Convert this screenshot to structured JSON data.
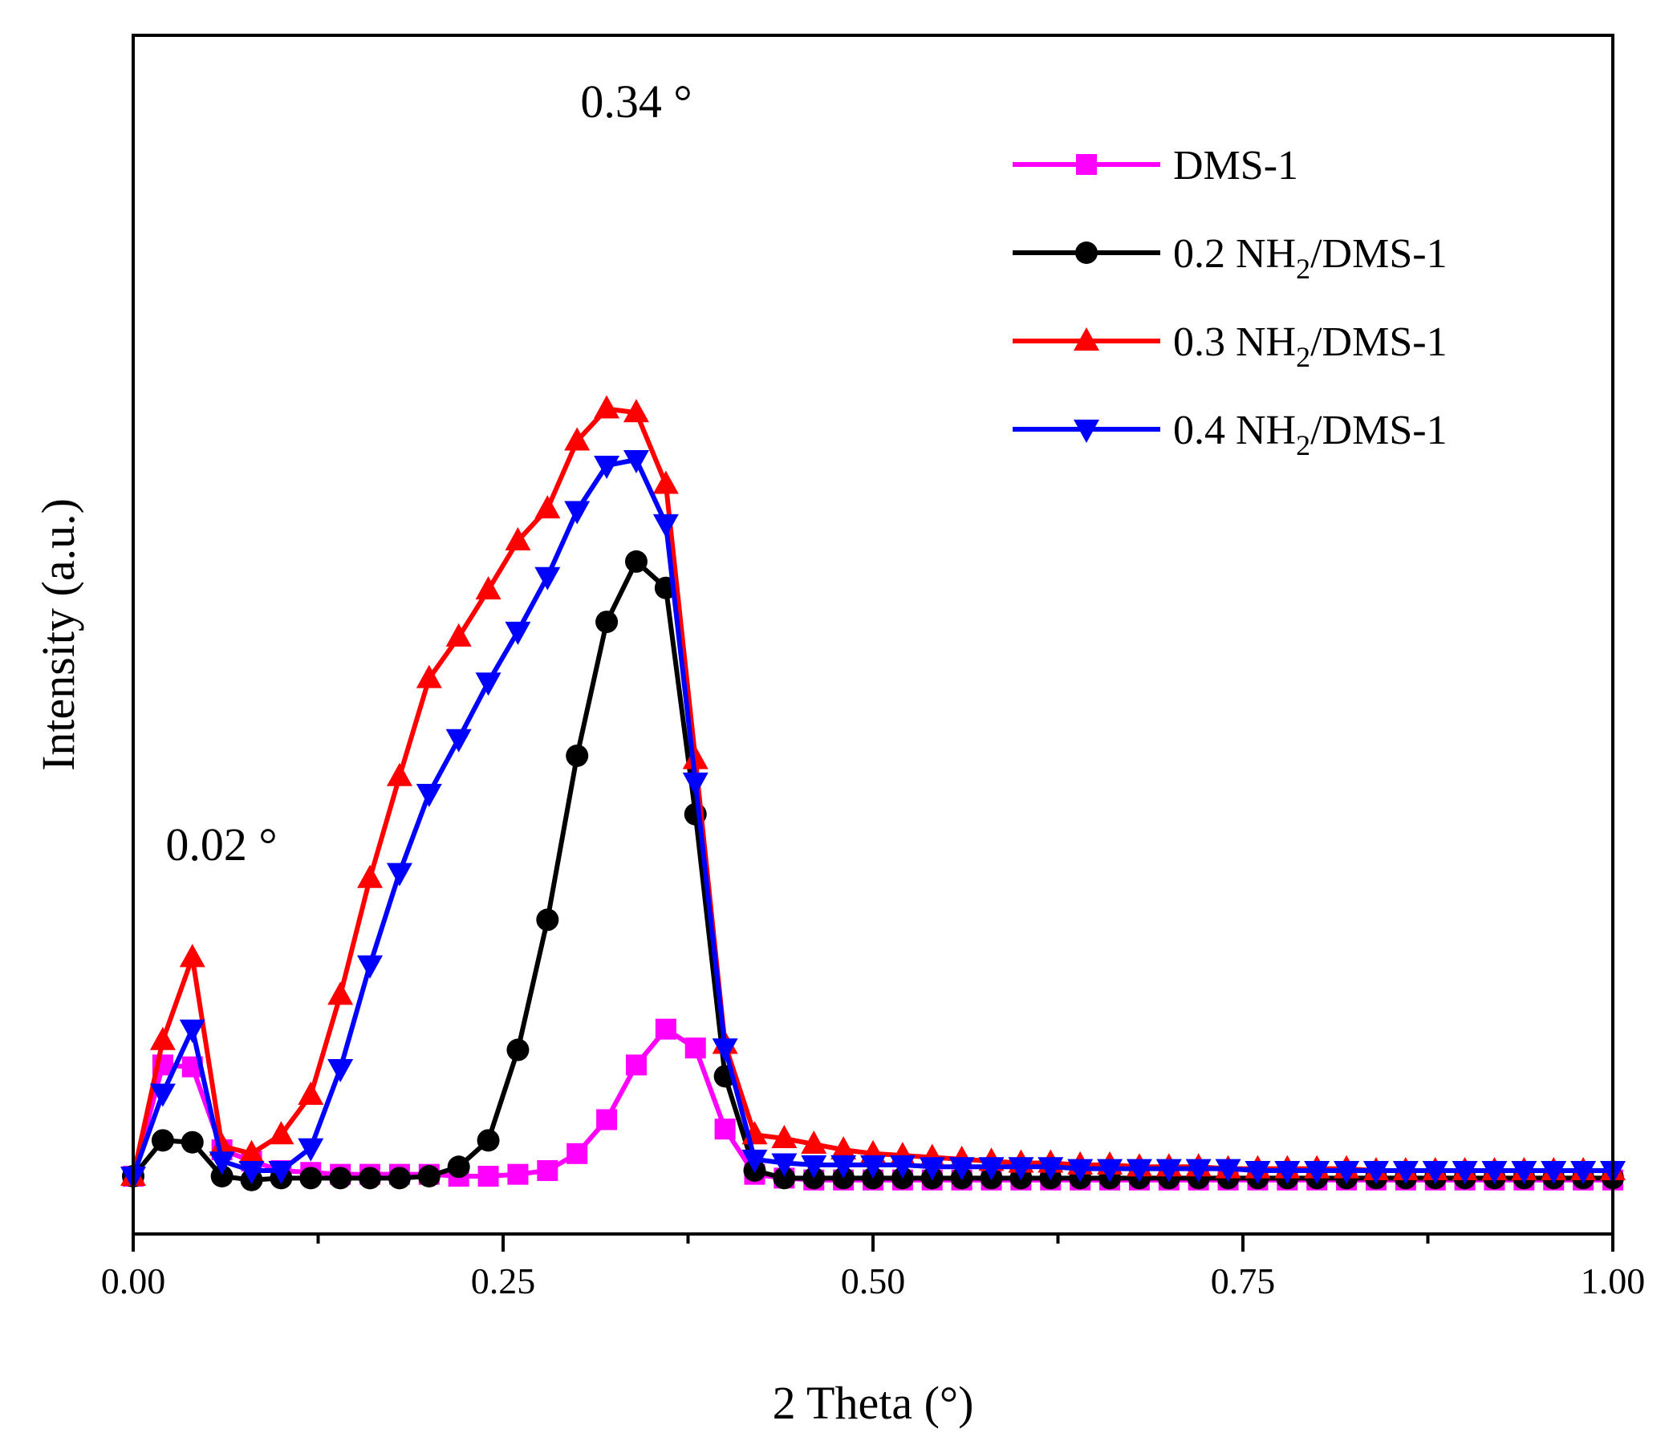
{
  "chart_data": {
    "type": "line",
    "title": "",
    "xlabel": "2 Theta (°)",
    "ylabel": "Intensity (a.u.)",
    "xlim": [
      0,
      1.0
    ],
    "ylim": [
      -2,
      48
    ],
    "xticks": [
      0.0,
      0.25,
      0.5,
      0.75,
      1.0
    ],
    "xtick_labels": [
      "0.00",
      "0.25",
      "0.50",
      "0.75",
      "1.00"
    ],
    "y_tick_labels_shown": false,
    "legend_position": "top-right",
    "annotations": [
      {
        "text": "0.34 °",
        "x": 0.34,
        "y": 45.5
      },
      {
        "text": "0.02 °",
        "x": 0.04,
        "y": 14.0
      }
    ],
    "x": [
      0.0,
      0.02,
      0.04,
      0.06,
      0.08,
      0.1,
      0.12,
      0.14,
      0.16,
      0.18,
      0.2,
      0.22,
      0.24,
      0.26,
      0.28,
      0.3,
      0.32,
      0.34,
      0.36,
      0.38,
      0.4,
      0.42,
      0.44,
      0.46,
      0.48,
      0.5,
      0.52,
      0.54,
      0.56,
      0.58,
      0.6,
      0.62,
      0.64,
      0.66,
      0.68,
      0.7,
      0.72,
      0.74,
      0.76,
      0.78,
      0.8,
      0.82,
      0.84,
      0.86,
      0.88,
      0.9,
      0.92,
      0.94,
      0.96,
      0.98,
      1.0
    ],
    "series": [
      {
        "name": "DMS-1",
        "label_parts": [
          "DMS-1",
          "",
          ""
        ],
        "color": "#ff00ff",
        "marker": "square",
        "values": [
          0.0,
          5.9,
          5.8,
          1.4,
          0.8,
          0.3,
          0.2,
          0.1,
          0.1,
          0.1,
          0.1,
          0.0,
          0.0,
          0.1,
          0.3,
          1.2,
          3.0,
          5.9,
          7.8,
          6.8,
          2.5,
          0.1,
          -0.1,
          -0.2,
          -0.2,
          -0.2,
          -0.2,
          -0.2,
          -0.2,
          -0.2,
          -0.2,
          -0.2,
          -0.2,
          -0.2,
          -0.2,
          -0.2,
          -0.2,
          -0.2,
          -0.2,
          -0.2,
          -0.2,
          -0.2,
          -0.2,
          -0.2,
          -0.2,
          -0.2,
          -0.2,
          -0.2,
          -0.2,
          -0.2,
          -0.2
        ]
      },
      {
        "name": "0.2 NH2/DMS-1",
        "label_parts": [
          "0.2 NH",
          "2",
          "/DMS-1"
        ],
        "color": "#000000",
        "marker": "circle",
        "values": [
          0.0,
          1.9,
          1.8,
          0.0,
          -0.2,
          -0.1,
          -0.1,
          -0.1,
          -0.1,
          -0.1,
          0.0,
          0.5,
          1.9,
          6.7,
          13.6,
          22.3,
          29.4,
          32.6,
          31.2,
          19.2,
          5.3,
          0.3,
          -0.1,
          -0.1,
          -0.1,
          -0.1,
          -0.1,
          -0.1,
          -0.1,
          -0.1,
          -0.1,
          -0.1,
          -0.1,
          -0.1,
          -0.1,
          -0.1,
          -0.1,
          -0.1,
          -0.1,
          -0.1,
          -0.1,
          -0.1,
          -0.1,
          -0.1,
          -0.1,
          -0.1,
          -0.1,
          -0.1,
          -0.1,
          -0.1,
          -0.1
        ]
      },
      {
        "name": "0.3 NH2/DMS-1",
        "label_parts": [
          "0.3 NH",
          "2",
          "/DMS-1"
        ],
        "color": "#ff0000",
        "marker": "triangle-up",
        "values": [
          0.0,
          7.2,
          11.6,
          1.6,
          1.2,
          2.2,
          4.3,
          9.6,
          15.8,
          21.2,
          26.4,
          28.6,
          31.1,
          33.7,
          35.4,
          39.0,
          40.7,
          40.5,
          36.7,
          22.1,
          7.0,
          2.2,
          2.0,
          1.7,
          1.4,
          1.2,
          1.1,
          1.0,
          0.9,
          0.8,
          0.7,
          0.7,
          0.6,
          0.6,
          0.5,
          0.5,
          0.5,
          0.4,
          0.4,
          0.4,
          0.4,
          0.4,
          0.3,
          0.3,
          0.3,
          0.3,
          0.3,
          0.3,
          0.3,
          0.3,
          0.3
        ]
      },
      {
        "name": "0.4 NH2/DMS-1",
        "label_parts": [
          "0.4 NH",
          "2",
          "/DMS-1"
        ],
        "color": "#0000ff",
        "marker": "triangle-down",
        "values": [
          0.0,
          4.4,
          7.8,
          0.8,
          0.3,
          0.3,
          1.5,
          5.7,
          11.2,
          16.1,
          20.3,
          23.2,
          26.2,
          28.9,
          31.8,
          35.3,
          37.7,
          38.0,
          34.6,
          20.9,
          6.8,
          0.9,
          0.7,
          0.6,
          0.6,
          0.6,
          0.6,
          0.5,
          0.5,
          0.5,
          0.5,
          0.5,
          0.4,
          0.4,
          0.4,
          0.4,
          0.4,
          0.4,
          0.3,
          0.3,
          0.3,
          0.3,
          0.3,
          0.3,
          0.3,
          0.3,
          0.3,
          0.3,
          0.3,
          0.3,
          0.3
        ]
      }
    ]
  }
}
